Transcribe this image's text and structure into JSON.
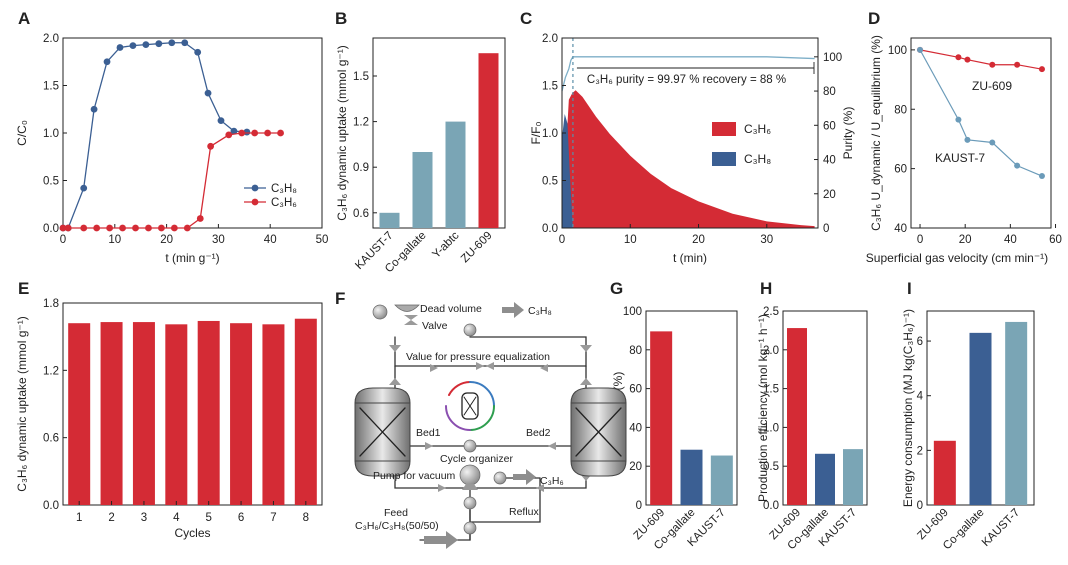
{
  "colors": {
    "red": "#d42b35",
    "blue": "#3b5f93",
    "teal": "#7aa5b5",
    "lightblue": "#7eafc8",
    "gray": "#7a7a7a"
  },
  "chart_data": [
    {
      "panel": "A",
      "type": "line",
      "xlabel": "t (min g⁻¹)",
      "ylabel": "C/C₀",
      "xlim": [
        0,
        50
      ],
      "ylim": [
        0,
        2.0
      ],
      "xticks": [
        "0",
        "10",
        "20",
        "30",
        "40",
        "50"
      ],
      "yticks": [
        "0.0",
        "0.5",
        "1.0",
        "1.5",
        "2.0"
      ],
      "legend": [
        "C₃H₈",
        "C₃H₆"
      ],
      "series": [
        {
          "name": "C₃H₈",
          "x": [
            0,
            1,
            4,
            6,
            8.5,
            11,
            13.5,
            16,
            18.5,
            21,
            23.5,
            26,
            28,
            30.5,
            33,
            35.5
          ],
          "y": [
            0,
            0,
            0.42,
            1.25,
            1.75,
            1.9,
            1.92,
            1.93,
            1.94,
            1.95,
            1.95,
            1.85,
            1.42,
            1.13,
            1.02,
            1.01
          ]
        },
        {
          "name": "C₃H₆",
          "x": [
            0,
            1,
            4,
            6.5,
            9,
            11.5,
            14,
            16.5,
            19,
            21.5,
            24,
            26.5,
            28.5,
            32,
            34.5,
            37,
            39.5,
            42
          ],
          "y": [
            0,
            0,
            0,
            0,
            0,
            0,
            0,
            0,
            0,
            0,
            0,
            0.1,
            0.86,
            0.98,
            1.0,
            1.0,
            1.0,
            1.0
          ]
        }
      ]
    },
    {
      "panel": "B",
      "type": "bar",
      "ylabel": "C₃H₆ dynamic uptake (mmol g⁻¹)",
      "ylim": [
        0.5,
        1.75
      ],
      "yticks": [
        "0.6",
        "0.9",
        "1.2",
        "1.5"
      ],
      "categories": [
        "KAUST-7",
        "Co-gallate",
        "Y-abtc",
        "ZU-609"
      ],
      "values": [
        0.6,
        1.0,
        1.2,
        1.65
      ]
    },
    {
      "panel": "C",
      "type": "area",
      "xlabel": "t (min)",
      "ylabel": "F/F₀",
      "y2label": "Purity (%)",
      "xlim": [
        0,
        37.5
      ],
      "ylim": [
        0,
        2.0
      ],
      "y2lim": [
        0,
        111
      ],
      "xticks": [
        "0",
        "10",
        "20",
        "30"
      ],
      "yticks": [
        "0.0",
        "0.5",
        "1.0",
        "1.5",
        "2.0"
      ],
      "y2ticks": [
        "0",
        "20",
        "40",
        "60",
        "80",
        "100"
      ],
      "annotation": "C₃H₆ purity  = 99.97 %   recovery  = 88 %",
      "legend": [
        "C₃H₆",
        "C₃H₈"
      ],
      "series": [
        {
          "name": "C₃H₆",
          "x": [
            0,
            0.5,
            1,
            1.5,
            2,
            3,
            5,
            7,
            10,
            13,
            16,
            20,
            25,
            30,
            35,
            37
          ],
          "y": [
            0,
            0.7,
            1.35,
            1.42,
            1.45,
            1.38,
            1.17,
            0.99,
            0.76,
            0.57,
            0.42,
            0.28,
            0.15,
            0.07,
            0.03,
            0.02
          ]
        },
        {
          "name": "C₃H₈",
          "x": [
            0,
            0.4,
            0.8,
            1.2,
            1.6
          ],
          "y": [
            0.95,
            1.2,
            1.1,
            0.5,
            0
          ]
        },
        {
          "name": "Purity (%)",
          "x": [
            0,
            0.5,
            1,
            1.3,
            1.6,
            2,
            5,
            10,
            20,
            30,
            37
          ],
          "y": [
            80,
            88,
            93,
            98,
            100,
            100,
            100,
            100,
            100,
            100,
            99
          ]
        }
      ]
    },
    {
      "panel": "D",
      "type": "line",
      "xlabel": "Superficial gas velocity (cm min⁻¹)",
      "ylabel": "C₃H₆ U_dynamic / U_equilibrium (%)",
      "xlim": [
        -4,
        58
      ],
      "ylim": [
        40,
        104
      ],
      "xticks": [
        "0",
        "20",
        "40",
        "60"
      ],
      "yticks": [
        "40",
        "60",
        "80",
        "100"
      ],
      "series": [
        {
          "name": "ZU-609",
          "x": [
            0,
            17,
            21,
            32,
            43,
            54
          ],
          "y": [
            100,
            97.5,
            96.7,
            95,
            95,
            93.5
          ]
        },
        {
          "name": "KAUST-7",
          "x": [
            0,
            17,
            21,
            32,
            43,
            54
          ],
          "y": [
            100,
            76.5,
            69.7,
            68.8,
            61,
            57.5
          ]
        }
      ]
    },
    {
      "panel": "E",
      "type": "bar",
      "xlabel": "Cycles",
      "ylabel": "C₃H₆ dynamic uptake (mmol g⁻¹)",
      "ylim": [
        0,
        1.8
      ],
      "yticks": [
        "0.0",
        "0.6",
        "1.2",
        "1.8"
      ],
      "categories": [
        "1",
        "2",
        "3",
        "4",
        "5",
        "6",
        "7",
        "8"
      ],
      "values": [
        1.62,
        1.63,
        1.63,
        1.61,
        1.64,
        1.62,
        1.61,
        1.66
      ]
    },
    {
      "panel": "G",
      "type": "bar",
      "ylabel": "Recovery (%)",
      "ylim": [
        0,
        100
      ],
      "yticks": [
        "0",
        "20",
        "40",
        "60",
        "80",
        "100"
      ],
      "categories": [
        "ZU-609",
        "Co-gallate",
        "KAUST-7"
      ],
      "values": [
        89.5,
        28.5,
        25.5
      ]
    },
    {
      "panel": "H",
      "type": "bar",
      "ylabel": "Production efficiency (mol kg⁻¹ h⁻¹)",
      "ylim": [
        0,
        2.5
      ],
      "yticks": [
        "0.0",
        "0.5",
        "1.0",
        "1.5",
        "2.0",
        "2.5"
      ],
      "categories": [
        "ZU-609",
        "Co-gallate",
        "KAUST-7"
      ],
      "values": [
        2.28,
        0.66,
        0.72
      ]
    },
    {
      "panel": "I",
      "type": "bar",
      "ylabel": "Energy consumption (MJ kg(C₃H₆)⁻¹)",
      "ylim": [
        0,
        7.1
      ],
      "yticks": [
        "0",
        "2",
        "4",
        "6"
      ],
      "categories": [
        "ZU-609",
        "Co-gallate",
        "KAUST-7"
      ],
      "values": [
        2.35,
        6.3,
        6.7
      ]
    }
  ],
  "schematic": {
    "panel": "F",
    "labels": {
      "dead_volume": "Dead volume",
      "valve": "Valve",
      "c3h8_out": "C₃H₈",
      "pressure_valve": "Value for pressure equalization",
      "bed1": "Bed1",
      "bed2": "Bed2",
      "cycle_organizer": "Cycle organizer",
      "pump": "Pump for vacuum",
      "c3h6_out": "C₃H₆",
      "feed": "Feed",
      "feed_comp": "C₃H₆/C₃H₈(50/50)",
      "reflux": "Reflux"
    }
  }
}
